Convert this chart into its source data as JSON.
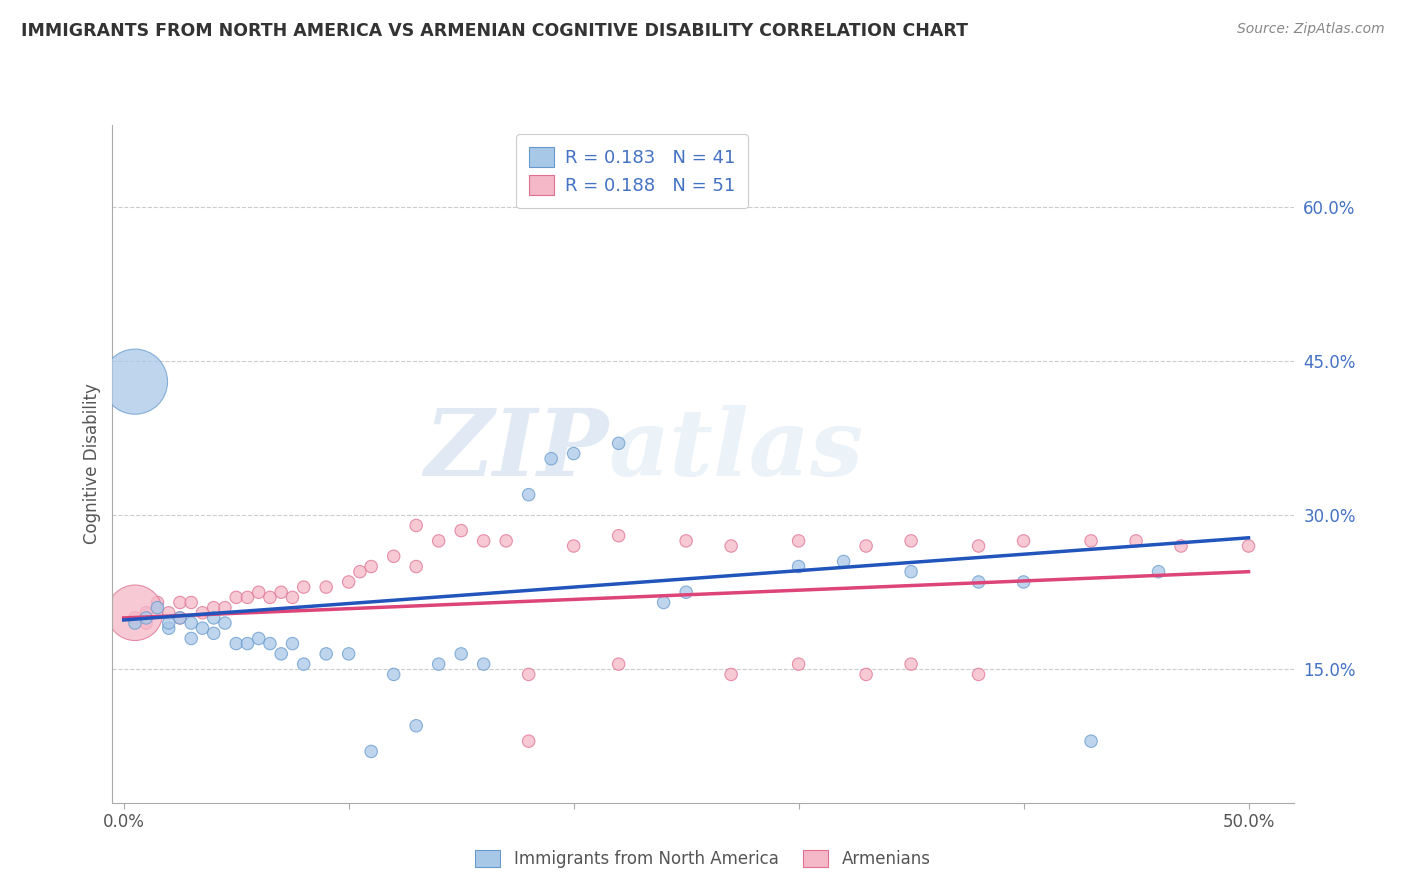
{
  "title": "IMMIGRANTS FROM NORTH AMERICA VS ARMENIAN COGNITIVE DISABILITY CORRELATION CHART",
  "source_text": "Source: ZipAtlas.com",
  "ylabel": "Cognitive Disability",
  "xlim": [
    -0.005,
    0.52
  ],
  "ylim": [
    0.02,
    0.68
  ],
  "x_ticks": [
    0.0,
    0.1,
    0.2,
    0.3,
    0.4,
    0.5
  ],
  "x_tick_labels": [
    "0.0%",
    "",
    "",
    "",
    "",
    "50.0%"
  ],
  "y_ticks_right": [
    0.15,
    0.3,
    0.45,
    0.6
  ],
  "y_tick_labels_right": [
    "15.0%",
    "30.0%",
    "45.0%",
    "60.0%"
  ],
  "blue_color": "#a8c8e8",
  "blue_edge_color": "#6699cc",
  "pink_color": "#f4b8c8",
  "pink_edge_color": "#e07090",
  "blue_line_color": "#2255bb",
  "pink_line_color": "#dd4477",
  "watermark1": "ZIP",
  "watermark2": "atlas",
  "blue_scatter_x": [
    0.005,
    0.01,
    0.015,
    0.02,
    0.02,
    0.025,
    0.03,
    0.03,
    0.035,
    0.04,
    0.04,
    0.045,
    0.05,
    0.055,
    0.06,
    0.065,
    0.07,
    0.075,
    0.08,
    0.09,
    0.1,
    0.11,
    0.12,
    0.13,
    0.14,
    0.15,
    0.16,
    0.18,
    0.19,
    0.2,
    0.22,
    0.24,
    0.25,
    0.3,
    0.32,
    0.35,
    0.38,
    0.4,
    0.43,
    0.46,
    0.005
  ],
  "blue_scatter_y": [
    0.195,
    0.2,
    0.21,
    0.19,
    0.195,
    0.2,
    0.195,
    0.18,
    0.19,
    0.2,
    0.185,
    0.195,
    0.175,
    0.175,
    0.18,
    0.175,
    0.165,
    0.175,
    0.155,
    0.165,
    0.165,
    0.07,
    0.145,
    0.095,
    0.155,
    0.165,
    0.155,
    0.32,
    0.355,
    0.36,
    0.37,
    0.215,
    0.225,
    0.25,
    0.255,
    0.245,
    0.235,
    0.235,
    0.08,
    0.245,
    0.43
  ],
  "blue_scatter_size": [
    80,
    80,
    80,
    80,
    80,
    80,
    80,
    80,
    80,
    80,
    80,
    80,
    80,
    80,
    80,
    80,
    80,
    80,
    80,
    80,
    80,
    80,
    80,
    80,
    80,
    80,
    80,
    80,
    80,
    80,
    80,
    80,
    80,
    80,
    80,
    80,
    80,
    80,
    80,
    80,
    2200
  ],
  "pink_scatter_x": [
    0.005,
    0.01,
    0.01,
    0.015,
    0.02,
    0.025,
    0.025,
    0.03,
    0.035,
    0.04,
    0.045,
    0.05,
    0.055,
    0.06,
    0.065,
    0.07,
    0.075,
    0.08,
    0.09,
    0.1,
    0.105,
    0.11,
    0.12,
    0.13,
    0.14,
    0.15,
    0.16,
    0.17,
    0.18,
    0.2,
    0.22,
    0.25,
    0.27,
    0.3,
    0.33,
    0.35,
    0.38,
    0.4,
    0.43,
    0.45,
    0.47,
    0.5,
    0.13,
    0.18,
    0.22,
    0.27,
    0.3,
    0.33,
    0.35,
    0.38,
    0.005
  ],
  "pink_scatter_y": [
    0.2,
    0.205,
    0.195,
    0.215,
    0.205,
    0.215,
    0.2,
    0.215,
    0.205,
    0.21,
    0.21,
    0.22,
    0.22,
    0.225,
    0.22,
    0.225,
    0.22,
    0.23,
    0.23,
    0.235,
    0.245,
    0.25,
    0.26,
    0.25,
    0.275,
    0.285,
    0.275,
    0.275,
    0.08,
    0.27,
    0.28,
    0.275,
    0.27,
    0.275,
    0.27,
    0.275,
    0.27,
    0.275,
    0.275,
    0.275,
    0.27,
    0.27,
    0.29,
    0.145,
    0.155,
    0.145,
    0.155,
    0.145,
    0.155,
    0.145,
    0.205
  ],
  "pink_scatter_size": [
    80,
    80,
    80,
    80,
    80,
    80,
    80,
    80,
    80,
    80,
    80,
    80,
    80,
    80,
    80,
    80,
    80,
    80,
    80,
    80,
    80,
    80,
    80,
    80,
    80,
    80,
    80,
    80,
    80,
    80,
    80,
    80,
    80,
    80,
    80,
    80,
    80,
    80,
    80,
    80,
    80,
    80,
    80,
    80,
    80,
    80,
    80,
    80,
    80,
    80,
    1600
  ],
  "blue_trend_x": [
    0.0,
    0.5
  ],
  "blue_trend_y": [
    0.198,
    0.278
  ],
  "pink_trend_x": [
    0.0,
    0.5
  ],
  "pink_trend_y": [
    0.2,
    0.245
  ],
  "grid_color": "#cccccc",
  "background_color": "#ffffff",
  "title_color": "#333333",
  "axis_label_color": "#555555",
  "right_tick_color": "#4472c4",
  "legend_label1": "R = 0.183   N = 41",
  "legend_label2": "R = 0.188   N = 51",
  "bottom_label1": "Immigrants from North America",
  "bottom_label2": "Armenians"
}
